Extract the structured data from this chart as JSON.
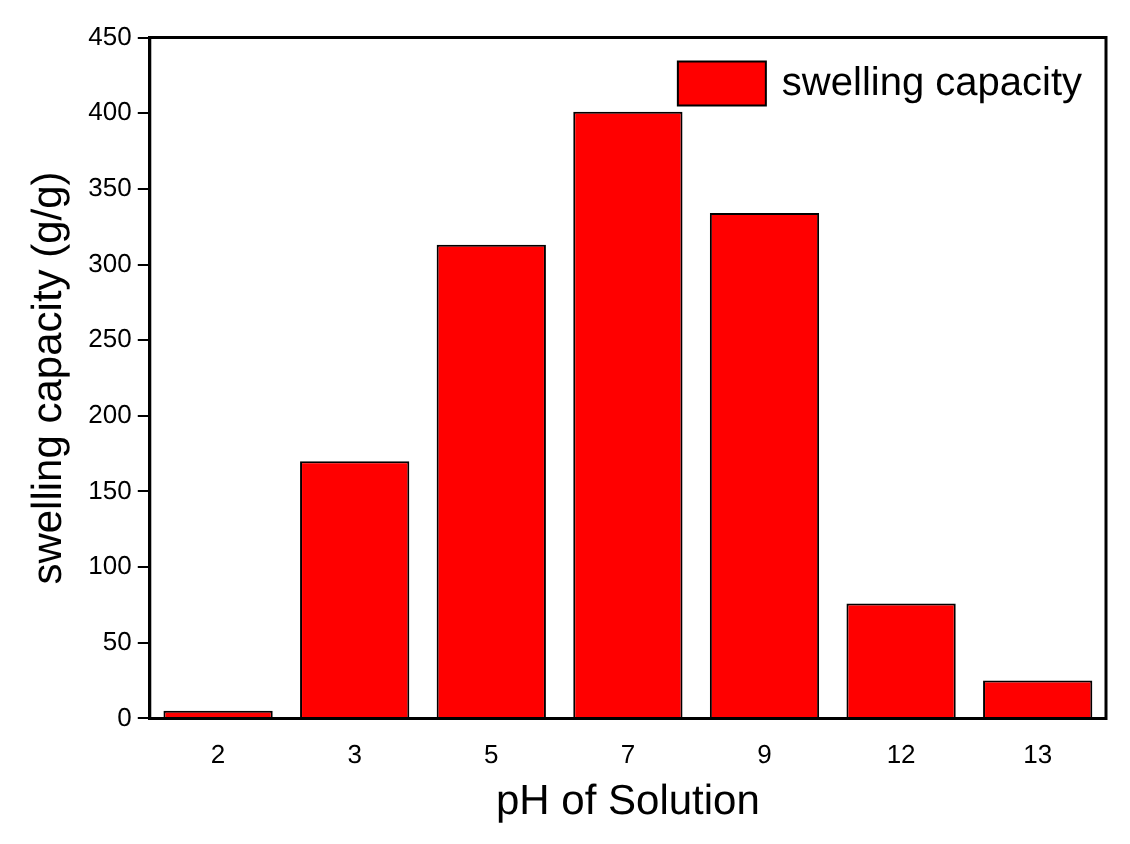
{
  "chart_data": {
    "type": "bar",
    "xlabel": "pH of Solution",
    "ylabel": "swelling capacity (g/g)",
    "categories": [
      "2",
      "3",
      "5",
      "7",
      "9",
      "12",
      "13"
    ],
    "series": [
      {
        "name": "swelling capacity",
        "color": "#ff0000",
        "values": [
          5,
          170,
          313,
          401,
          334,
          76,
          25
        ]
      }
    ],
    "ylim": [
      0,
      450
    ],
    "yticks": [
      0,
      50,
      100,
      150,
      200,
      250,
      300,
      350,
      400,
      450
    ],
    "grid": false,
    "legend": "top right"
  }
}
